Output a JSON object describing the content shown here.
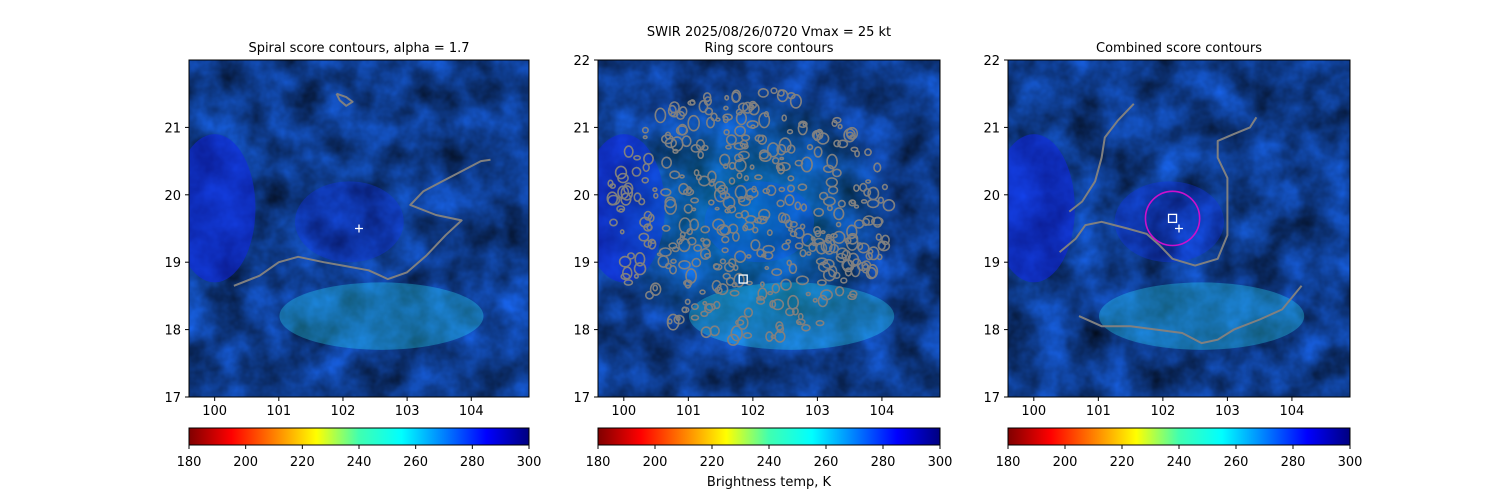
{
  "suptitle": {
    "line1": "SWIR  2025/08/26/0720    Vmax = 25 kt"
  },
  "colors": {
    "contour": "#808080",
    "marker": "#ffffff",
    "circle": "#cc10cc"
  },
  "colorbar": {
    "cmap": "jet_r",
    "label": "Brightness temp, K",
    "range": [
      180,
      300
    ],
    "ticks": [
      "180",
      "200",
      "220",
      "240",
      "260",
      "280",
      "300"
    ]
  },
  "chart_data": [
    {
      "type": "heatmap",
      "title": "Spiral score contours, alpha =  1.7",
      "xlim": [
        99.6,
        104.9
      ],
      "ylim": [
        17,
        22
      ],
      "xticks": [
        "100",
        "101",
        "102",
        "103",
        "104"
      ],
      "yticks": [
        "17",
        "18",
        "19",
        "20",
        "21"
      ],
      "center_marker": {
        "lon": 102.25,
        "lat": 19.5,
        "shape": "plus"
      },
      "contour_lines": [
        [
          [
            100.3,
            18.65
          ],
          [
            100.7,
            18.8
          ],
          [
            101.0,
            19.0
          ],
          [
            101.3,
            19.08
          ],
          [
            101.7,
            19.0
          ],
          [
            102.0,
            18.95
          ],
          [
            102.4,
            18.88
          ],
          [
            102.7,
            18.75
          ],
          [
            103.0,
            18.85
          ],
          [
            103.3,
            19.1
          ],
          [
            103.6,
            19.4
          ],
          [
            103.85,
            19.62
          ],
          [
            103.45,
            19.7
          ],
          [
            103.05,
            19.85
          ],
          [
            103.25,
            20.05
          ],
          [
            103.55,
            20.2
          ],
          [
            103.85,
            20.35
          ],
          [
            104.15,
            20.5
          ],
          [
            104.3,
            20.52
          ]
        ],
        [
          [
            101.9,
            21.5
          ],
          [
            102.05,
            21.45
          ],
          [
            102.15,
            21.38
          ],
          [
            102.05,
            21.32
          ],
          [
            101.95,
            21.4
          ],
          [
            101.9,
            21.5
          ]
        ]
      ]
    },
    {
      "type": "heatmap",
      "title": "Ring score contours",
      "xlim": [
        99.6,
        104.9
      ],
      "ylim": [
        17,
        22
      ],
      "xticks": [
        "100",
        "101",
        "102",
        "103",
        "104"
      ],
      "yticks": [
        "17",
        "18",
        "19",
        "20",
        "21",
        "22"
      ],
      "center_marker": {
        "lon": 101.85,
        "lat": 18.75,
        "shape": "square"
      },
      "ring_region": {
        "lon": 101.9,
        "lat": 19.7,
        "radius_deg": 2.3
      }
    },
    {
      "type": "heatmap",
      "title": "Combined score contours",
      "xlim": [
        99.6,
        104.9
      ],
      "ylim": [
        17,
        22
      ],
      "xticks": [
        "100",
        "101",
        "102",
        "103",
        "104"
      ],
      "yticks": [
        "17",
        "18",
        "19",
        "20",
        "21",
        "22"
      ],
      "center_marker": {
        "lon": 102.25,
        "lat": 19.5,
        "shape": "plus"
      },
      "square_marker": {
        "lon": 102.15,
        "lat": 19.65
      },
      "circle": {
        "lon": 102.15,
        "lat": 19.65,
        "radius_deg": 0.42
      },
      "contour_lines": [
        [
          [
            100.4,
            19.15
          ],
          [
            100.65,
            19.35
          ],
          [
            100.8,
            19.55
          ],
          [
            101.05,
            19.6
          ],
          [
            101.45,
            19.5
          ],
          [
            101.75,
            19.42
          ],
          [
            101.95,
            19.25
          ],
          [
            102.15,
            19.05
          ],
          [
            102.5,
            18.95
          ],
          [
            102.85,
            19.05
          ],
          [
            103.0,
            19.4
          ],
          [
            103.0,
            19.8
          ],
          [
            103.0,
            20.25
          ],
          [
            102.85,
            20.55
          ],
          [
            102.85,
            20.8
          ],
          [
            103.1,
            20.9
          ],
          [
            103.35,
            21.0
          ],
          [
            103.45,
            21.15
          ]
        ],
        [
          [
            100.55,
            19.75
          ],
          [
            100.75,
            19.9
          ],
          [
            100.95,
            20.2
          ],
          [
            101.05,
            20.55
          ],
          [
            101.1,
            20.85
          ],
          [
            101.3,
            21.1
          ],
          [
            101.55,
            21.35
          ]
        ],
        [
          [
            100.7,
            18.2
          ],
          [
            101.05,
            18.05
          ],
          [
            101.5,
            18.05
          ],
          [
            101.9,
            18.0
          ],
          [
            102.3,
            17.95
          ],
          [
            102.6,
            17.8
          ],
          [
            102.85,
            17.85
          ],
          [
            103.1,
            18.0
          ],
          [
            103.5,
            18.15
          ],
          [
            103.85,
            18.3
          ],
          [
            104.15,
            18.65
          ]
        ]
      ]
    }
  ]
}
